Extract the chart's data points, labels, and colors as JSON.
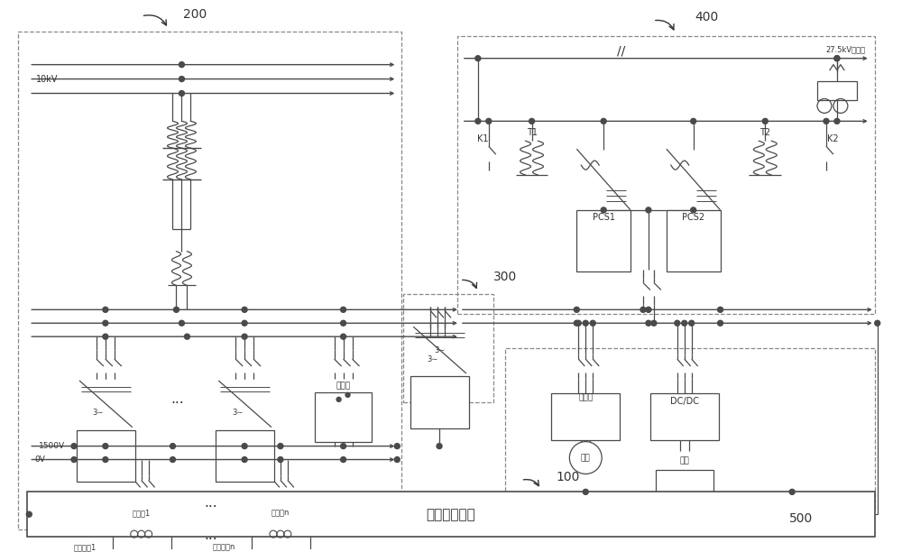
{
  "background": "#ffffff",
  "line_color": "#4a4a4a",
  "text_color": "#333333",
  "dashed_color": "#888888",
  "label_200": "200",
  "label_300": "300",
  "label_400": "400",
  "label_500": "500",
  "label_100": "100",
  "label_10kv": "10kV",
  "label_1500v": "1500V",
  "label_0v": "0V",
  "label_k1": "K1",
  "label_k2": "K2",
  "label_t1": "T1",
  "label_t2": "T2",
  "label_pcs1": "PCS1",
  "label_pcs2": "PCS2",
  "label_27_5kv": "27.5kV接触网",
  "label_chongdianzhuang": "充电桩",
  "label_chudianeng": "储电能",
  "label_feici": "飞轮",
  "label_dcdc": "DC/DC",
  "label_dianchi": "电池",
  "label_huiliuxiang1": "汇流符1",
  "label_huiliuxiangn": "汇流符n",
  "label_guangfuarray1": "光伏阵冗1",
  "label_guangfuarrayn": "光伏阵列n",
  "label_ems": "能量管理装置",
  "label_3ac": "3∼"
}
